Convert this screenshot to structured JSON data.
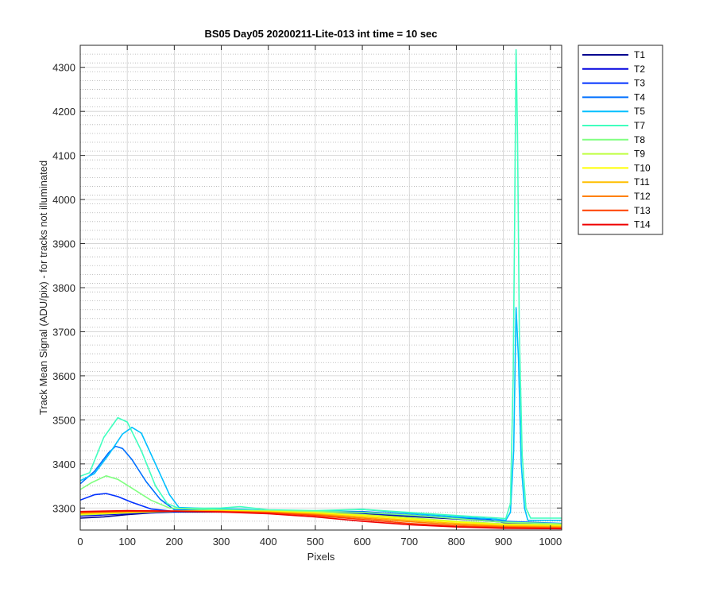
{
  "chart_data": {
    "type": "line",
    "title": "BS05 Day05 20200211-Lite-013 int time = 10 sec",
    "xlabel": "Pixels",
    "ylabel": "Track Mean Signal (ADU/pix) - for tracks not illuminated",
    "xlim": [
      0,
      1024
    ],
    "ylim": [
      3250,
      4350
    ],
    "xticks": [
      0,
      100,
      200,
      300,
      400,
      500,
      600,
      700,
      800,
      900,
      1000
    ],
    "yticks": [
      3300,
      3400,
      3500,
      3600,
      3700,
      3800,
      3900,
      4000,
      4100,
      4200,
      4300
    ],
    "grid": true,
    "minor_grid_y": true,
    "legend_position": "outside-top-right",
    "series": [
      {
        "name": "T1",
        "color": "#00008f",
        "points": [
          [
            0,
            3277
          ],
          [
            50,
            3280
          ],
          [
            100,
            3285
          ],
          [
            150,
            3289
          ],
          [
            200,
            3291
          ],
          [
            300,
            3291
          ],
          [
            400,
            3291
          ],
          [
            500,
            3288
          ],
          [
            600,
            3286
          ],
          [
            700,
            3281
          ],
          [
            800,
            3275
          ],
          [
            900,
            3268
          ],
          [
            960,
            3264
          ],
          [
            1024,
            3264
          ]
        ]
      },
      {
        "name": "T2",
        "color": "#0000df",
        "points": [
          [
            0,
            3282
          ],
          [
            100,
            3287
          ],
          [
            200,
            3292
          ],
          [
            300,
            3293
          ],
          [
            400,
            3292
          ],
          [
            500,
            3290
          ],
          [
            600,
            3289
          ],
          [
            700,
            3284
          ],
          [
            800,
            3277
          ],
          [
            860,
            3276
          ],
          [
            900,
            3267
          ],
          [
            1024,
            3262
          ]
        ]
      },
      {
        "name": "T3",
        "color": "#0030ff",
        "points": [
          [
            0,
            3318
          ],
          [
            30,
            3330
          ],
          [
            55,
            3333
          ],
          [
            80,
            3326
          ],
          [
            110,
            3313
          ],
          [
            150,
            3298
          ],
          [
            200,
            3292
          ],
          [
            300,
            3292
          ],
          [
            400,
            3291
          ],
          [
            500,
            3290
          ],
          [
            600,
            3289
          ],
          [
            700,
            3283
          ],
          [
            800,
            3277
          ],
          [
            900,
            3269
          ],
          [
            1024,
            3263
          ]
        ]
      },
      {
        "name": "T4",
        "color": "#0070ff",
        "points": [
          [
            0,
            3355
          ],
          [
            30,
            3383
          ],
          [
            60,
            3425
          ],
          [
            75,
            3440
          ],
          [
            90,
            3435
          ],
          [
            110,
            3410
          ],
          [
            140,
            3360
          ],
          [
            170,
            3320
          ],
          [
            200,
            3296
          ],
          [
            300,
            3294
          ],
          [
            400,
            3292
          ],
          [
            500,
            3291
          ],
          [
            600,
            3292
          ],
          [
            700,
            3285
          ],
          [
            800,
            3277
          ],
          [
            900,
            3270
          ],
          [
            1024,
            3265
          ]
        ]
      },
      {
        "name": "T5",
        "color": "#00bfff",
        "points": [
          [
            0,
            3362
          ],
          [
            30,
            3378
          ],
          [
            60,
            3420
          ],
          [
            90,
            3468
          ],
          [
            110,
            3483
          ],
          [
            130,
            3470
          ],
          [
            160,
            3400
          ],
          [
            190,
            3330
          ],
          [
            210,
            3301
          ],
          [
            300,
            3298
          ],
          [
            350,
            3297
          ],
          [
            400,
            3294
          ],
          [
            500,
            3292
          ],
          [
            600,
            3297
          ],
          [
            700,
            3288
          ],
          [
            800,
            3280
          ],
          [
            880,
            3275
          ],
          [
            905,
            3272
          ],
          [
            915,
            3290
          ],
          [
            922,
            3430
          ],
          [
            927,
            3755
          ],
          [
            932,
            3640
          ],
          [
            938,
            3400
          ],
          [
            945,
            3300
          ],
          [
            952,
            3272
          ],
          [
            1024,
            3272
          ]
        ]
      },
      {
        "name": "T7",
        "color": "#40ffbf",
        "points": [
          [
            0,
            3372
          ],
          [
            20,
            3380
          ],
          [
            50,
            3460
          ],
          [
            80,
            3505
          ],
          [
            100,
            3495
          ],
          [
            130,
            3430
          ],
          [
            160,
            3350
          ],
          [
            185,
            3310
          ],
          [
            210,
            3299
          ],
          [
            300,
            3300
          ],
          [
            340,
            3303
          ],
          [
            400,
            3296
          ],
          [
            500,
            3294
          ],
          [
            600,
            3297
          ],
          [
            700,
            3290
          ],
          [
            800,
            3283
          ],
          [
            880,
            3278
          ],
          [
            905,
            3276
          ],
          [
            915,
            3310
          ],
          [
            921,
            3600
          ],
          [
            924,
            3950
          ],
          [
            927,
            4340
          ],
          [
            930,
            4150
          ],
          [
            934,
            3700
          ],
          [
            940,
            3420
          ],
          [
            948,
            3300
          ],
          [
            958,
            3277
          ],
          [
            1024,
            3277
          ]
        ]
      },
      {
        "name": "T8",
        "color": "#80ff80",
        "points": [
          [
            0,
            3342
          ],
          [
            25,
            3358
          ],
          [
            55,
            3373
          ],
          [
            80,
            3365
          ],
          [
            110,
            3345
          ],
          [
            150,
            3318
          ],
          [
            190,
            3300
          ],
          [
            250,
            3297
          ],
          [
            300,
            3296
          ],
          [
            400,
            3294
          ],
          [
            500,
            3292
          ],
          [
            600,
            3290
          ],
          [
            700,
            3284
          ],
          [
            800,
            3276
          ],
          [
            900,
            3268
          ],
          [
            1024,
            3264
          ]
        ]
      },
      {
        "name": "T9",
        "color": "#bfff40",
        "points": [
          [
            0,
            3284
          ],
          [
            100,
            3289
          ],
          [
            200,
            3293
          ],
          [
            300,
            3294
          ],
          [
            400,
            3293
          ],
          [
            500,
            3290
          ],
          [
            600,
            3285
          ],
          [
            700,
            3278
          ],
          [
            800,
            3270
          ],
          [
            900,
            3264
          ],
          [
            1024,
            3262
          ]
        ]
      },
      {
        "name": "T10",
        "color": "#ffff00",
        "points": [
          [
            0,
            3286
          ],
          [
            100,
            3290
          ],
          [
            200,
            3293
          ],
          [
            300,
            3294
          ],
          [
            400,
            3292
          ],
          [
            500,
            3289
          ],
          [
            600,
            3283
          ],
          [
            700,
            3275
          ],
          [
            800,
            3268
          ],
          [
            900,
            3262
          ],
          [
            1024,
            3260
          ]
        ]
      },
      {
        "name": "T11",
        "color": "#ffbf00",
        "points": [
          [
            0,
            3288
          ],
          [
            100,
            3291
          ],
          [
            200,
            3293
          ],
          [
            300,
            3293
          ],
          [
            400,
            3291
          ],
          [
            500,
            3287
          ],
          [
            600,
            3280
          ],
          [
            700,
            3272
          ],
          [
            800,
            3265
          ],
          [
            900,
            3260
          ],
          [
            1024,
            3258
          ]
        ]
      },
      {
        "name": "T12",
        "color": "#ff8000",
        "points": [
          [
            0,
            3289
          ],
          [
            100,
            3292
          ],
          [
            200,
            3293
          ],
          [
            300,
            3292
          ],
          [
            400,
            3290
          ],
          [
            500,
            3285
          ],
          [
            600,
            3277
          ],
          [
            700,
            3269
          ],
          [
            800,
            3262
          ],
          [
            900,
            3258
          ],
          [
            1024,
            3256
          ]
        ]
      },
      {
        "name": "T13",
        "color": "#ff4000",
        "points": [
          [
            0,
            3291
          ],
          [
            100,
            3293
          ],
          [
            200,
            3293
          ],
          [
            300,
            3292
          ],
          [
            400,
            3289
          ],
          [
            500,
            3283
          ],
          [
            600,
            3274
          ],
          [
            700,
            3265
          ],
          [
            800,
            3259
          ],
          [
            900,
            3256
          ],
          [
            1024,
            3254
          ]
        ]
      },
      {
        "name": "T14",
        "color": "#ef0000",
        "points": [
          [
            0,
            3292
          ],
          [
            100,
            3294
          ],
          [
            200,
            3293
          ],
          [
            300,
            3291
          ],
          [
            400,
            3287
          ],
          [
            500,
            3280
          ],
          [
            600,
            3270
          ],
          [
            700,
            3262
          ],
          [
            800,
            3257
          ],
          [
            900,
            3254
          ],
          [
            1024,
            3253
          ]
        ]
      }
    ]
  }
}
